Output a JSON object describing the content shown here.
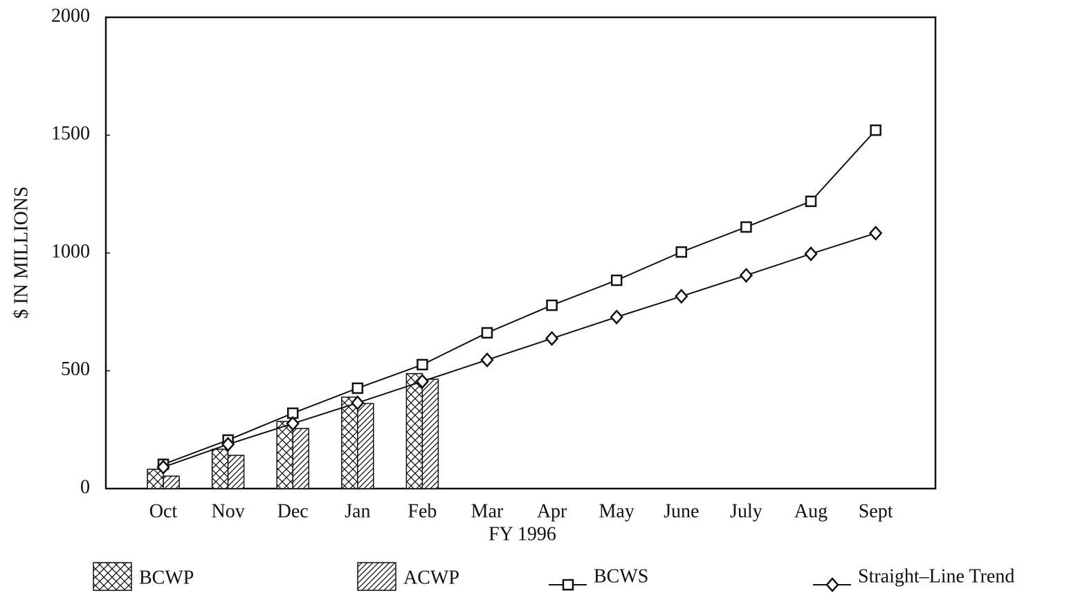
{
  "chart_data": {
    "type": "bar-line",
    "x_label": "FY 1996",
    "y_label": "$ IN MILLIONS",
    "categories": [
      "Oct",
      "Nov",
      "Dec",
      "Jan",
      "Feb",
      "Mar",
      "Apr",
      "May",
      "June",
      "July",
      "Aug",
      "Sept"
    ],
    "ylim": [
      0,
      2000
    ],
    "yticks": [
      0,
      500,
      1000,
      1500,
      2000
    ],
    "series": [
      {
        "name": "BCWP",
        "kind": "bar",
        "pattern": "crosshatch",
        "color": "#111111",
        "values": [
          82,
          167,
          285,
          388,
          488,
          null,
          null,
          null,
          null,
          null,
          null,
          null
        ]
      },
      {
        "name": "ACWP",
        "kind": "bar",
        "pattern": "diagonal",
        "color": "#111111",
        "values": [
          53,
          141,
          255,
          361,
          464,
          null,
          null,
          null,
          null,
          null,
          null,
          null
        ]
      },
      {
        "name": "BCWS",
        "kind": "line",
        "marker": "square",
        "color": "#111111",
        "values": [
          103,
          206,
          320,
          426,
          526,
          661,
          778,
          884,
          1004,
          1110,
          1219,
          1521
        ]
      },
      {
        "name": "Straight–Line Trend",
        "kind": "line",
        "marker": "diamond",
        "color": "#111111",
        "values": [
          91,
          188,
          276,
          364,
          455,
          546,
          637,
          728,
          816,
          905,
          996,
          1084
        ]
      }
    ]
  }
}
